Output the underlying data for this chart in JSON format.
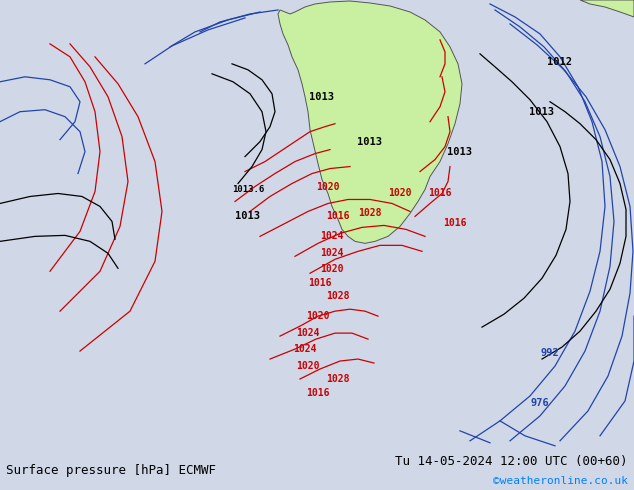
{
  "title_left": "Surface pressure [hPa] ECMWF",
  "title_right": "Tu 14-05-2024 12:00 UTC (00+60)",
  "watermark": "©weatheronline.co.uk",
  "figsize": [
    6.34,
    4.9
  ],
  "dpi": 100,
  "bg_color": "#d0d8e8",
  "land_color": "#c8f0a0",
  "ocean_color": "#c8d8f0",
  "bottom_bar_color": "#e8e8e8",
  "bottom_bar_height": 0.08,
  "title_fontsize": 9,
  "watermark_color": "#0080ff",
  "label_color_black": "#000000",
  "label_color_red": "#cc0000",
  "label_color_blue": "#0000cc",
  "contour_color_red": "#cc0000",
  "contour_color_blue": "#2244aa",
  "contour_color_black": "#000000",
  "annotation_black": [
    "1013",
    "1013",
    "1013",
    "1013.6",
    "1013",
    "1012"
  ],
  "annotation_red": [
    "1020",
    "1016",
    "1016",
    "1020",
    "1020",
    "1028",
    "1024",
    "1024",
    "1020",
    "1016",
    "1028",
    "1020",
    "1024",
    "1024",
    "1020",
    "1028",
    "1016"
  ],
  "annotation_blue": [
    "992",
    "976"
  ]
}
